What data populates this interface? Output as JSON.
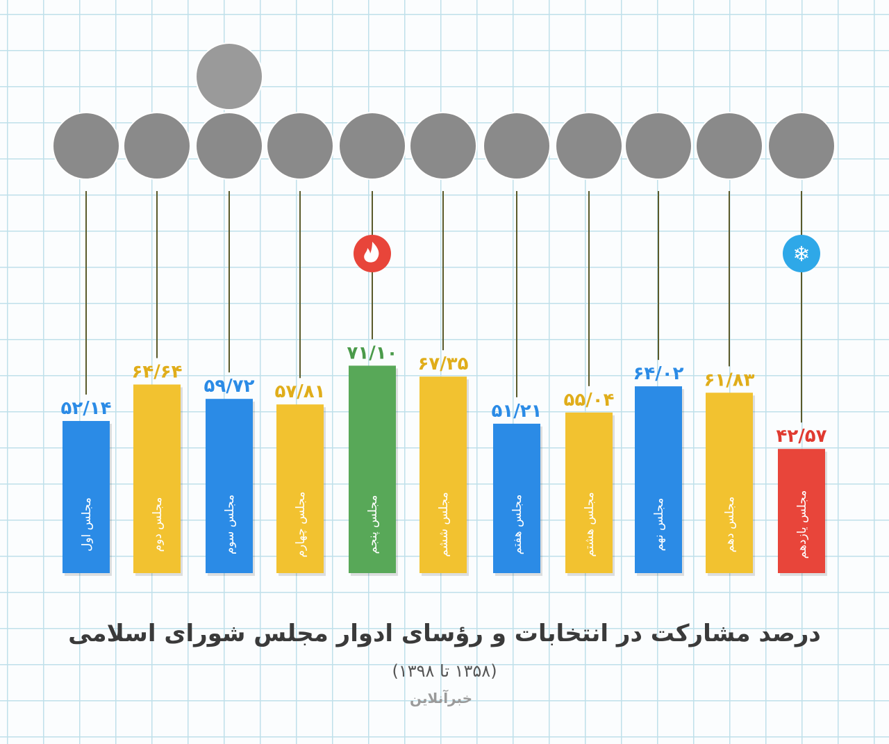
{
  "chart_data": {
    "type": "bar",
    "title": "درصد مشارکت در انتخابات و رؤسای ادوار مجلس شورای اسلامی",
    "subtitle": "(۱۳۵۸ تا ۱۳۹۸)",
    "categories": [
      "مجلس اول",
      "مجلس دوم",
      "مجلس سوم",
      "مجلس چهارم",
      "مجلس پنجم",
      "مجلس ششم",
      "مجلس هفتم",
      "مجلس هشتم",
      "مجلس نهم",
      "مجلس دهم",
      "مجلس یازدهم"
    ],
    "values": [
      52.14,
      64.64,
      59.72,
      57.81,
      71.1,
      67.35,
      51.21,
      55.04,
      64.02,
      61.83,
      42.57
    ],
    "data_labels": [
      "۵۲/۱۴",
      "۶۴/۶۴",
      "۵۹/۷۲",
      "۵۷/۸۱",
      "۷۱/۱۰",
      "۶۷/۳۵",
      "۵۱/۲۱",
      "۵۵/۰۴",
      "۶۴/۰۲",
      "۶۱/۸۳",
      "۴۲/۵۷"
    ],
    "colors": [
      "#2b8be6",
      "#f2c230",
      "#2b8be6",
      "#f2c230",
      "#58a858",
      "#f2c230",
      "#2b8be6",
      "#f2c230",
      "#2b8be6",
      "#f2c230",
      "#e8453a"
    ],
    "label_colors": [
      "#2b8be6",
      "#e0ad1a",
      "#2b8be6",
      "#e0ad1a",
      "#4a9a4a",
      "#e0ad1a",
      "#2b8be6",
      "#e0ad1a",
      "#2b8be6",
      "#e0ad1a",
      "#e03a30"
    ],
    "markers": {
      "max": {
        "index": 4,
        "icon": "fire-icon",
        "color": "#e8453a"
      },
      "min": {
        "index": 10,
        "icon": "snowflake-icon",
        "color": "#2ea8e8"
      }
    },
    "grid": true,
    "ylim": [
      0,
      75
    ]
  },
  "logo": "خبرآنلاین"
}
